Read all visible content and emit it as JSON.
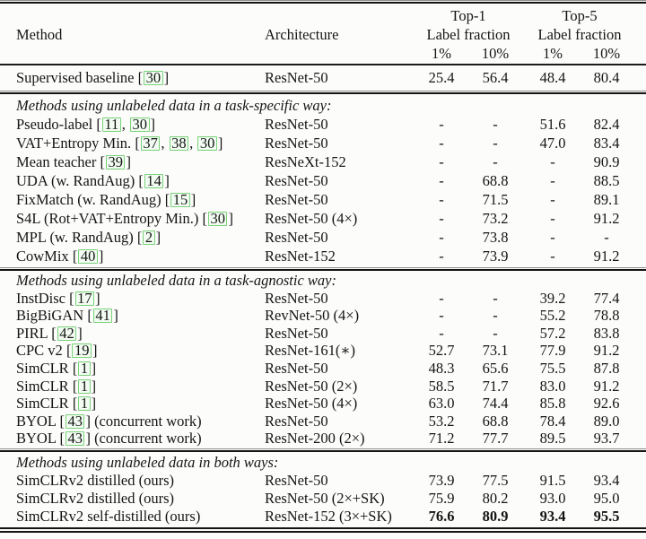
{
  "colors": {
    "citation_border": "#79d279",
    "citation_background": "#f2fcf2",
    "text": "#151515",
    "rule": "#141414"
  },
  "header": {
    "method": "Method",
    "architecture": "Architecture",
    "groups": [
      {
        "title": "Top-1",
        "subtitle": "Label fraction",
        "cols": [
          "1%",
          "10%"
        ]
      },
      {
        "title": "Top-5",
        "subtitle": "Label fraction",
        "cols": [
          "1%",
          "10%"
        ]
      }
    ]
  },
  "sections": [
    {
      "title": "",
      "rows": [
        {
          "method": {
            "name": "Supervised baseline",
            "citations": [
              "30"
            ],
            "suffix": ""
          },
          "architecture": "ResNet-50",
          "values": [
            "25.4",
            "56.4",
            "48.4",
            "80.4"
          ],
          "bold": false
        }
      ]
    },
    {
      "title": "Methods using unlabeled data in a task-specific way:",
      "rows": [
        {
          "method": {
            "name": "Pseudo-label",
            "citations": [
              "11",
              "30"
            ],
            "suffix": ""
          },
          "architecture": "ResNet-50",
          "values": [
            "-",
            "-",
            "51.6",
            "82.4"
          ],
          "bold": false
        },
        {
          "method": {
            "name": "VAT+Entropy Min.",
            "citations": [
              "37",
              "38",
              "30"
            ],
            "suffix": ""
          },
          "architecture": "ResNet-50",
          "values": [
            "-",
            "-",
            "47.0",
            "83.4"
          ],
          "bold": false
        },
        {
          "method": {
            "name": "Mean teacher",
            "citations": [
              "39"
            ],
            "suffix": ""
          },
          "architecture": "ResNeXt-152",
          "values": [
            "-",
            "-",
            "-",
            "90.9"
          ],
          "bold": false
        },
        {
          "method": {
            "name": "UDA (w. RandAug)",
            "citations": [
              "14"
            ],
            "suffix": ""
          },
          "architecture": "ResNet-50",
          "values": [
            "-",
            "68.8",
            "-",
            "88.5"
          ],
          "bold": false
        },
        {
          "method": {
            "name": "FixMatch (w. RandAug)",
            "citations": [
              "15"
            ],
            "suffix": ""
          },
          "architecture": "ResNet-50",
          "values": [
            "-",
            "71.5",
            "-",
            "89.1"
          ],
          "bold": false
        },
        {
          "method": {
            "name": "S4L (Rot+VAT+Entropy Min.)",
            "citations": [
              "30"
            ],
            "suffix": ""
          },
          "architecture": "ResNet-50 (4×)",
          "values": [
            "-",
            "73.2",
            "-",
            "91.2"
          ],
          "bold": false
        },
        {
          "method": {
            "name": "MPL (w. RandAug)",
            "citations": [
              "2"
            ],
            "suffix": ""
          },
          "architecture": "ResNet-50",
          "values": [
            "-",
            "73.8",
            "-",
            "-"
          ],
          "bold": false
        },
        {
          "method": {
            "name": "CowMix",
            "citations": [
              "40"
            ],
            "suffix": ""
          },
          "architecture": "ResNet-152",
          "values": [
            "-",
            "73.9",
            "-",
            "91.2"
          ],
          "bold": false
        }
      ]
    },
    {
      "title": "Methods using unlabeled data in a task-agnostic way:",
      "rows": [
        {
          "method": {
            "name": "InstDisc",
            "citations": [
              "17"
            ],
            "suffix": ""
          },
          "architecture": "ResNet-50",
          "values": [
            "-",
            "-",
            "39.2",
            "77.4"
          ],
          "bold": false
        },
        {
          "method": {
            "name": "BigBiGAN",
            "citations": [
              "41"
            ],
            "suffix": ""
          },
          "architecture": "RevNet-50 (4×)",
          "values": [
            "-",
            "-",
            "55.2",
            "78.8"
          ],
          "bold": false
        },
        {
          "method": {
            "name": "PIRL",
            "citations": [
              "42"
            ],
            "suffix": ""
          },
          "architecture": "ResNet-50",
          "values": [
            "-",
            "-",
            "57.2",
            "83.8"
          ],
          "bold": false
        },
        {
          "method": {
            "name": "CPC v2",
            "citations": [
              "19"
            ],
            "suffix": ""
          },
          "architecture": "ResNet-161(∗)",
          "values": [
            "52.7",
            "73.1",
            "77.9",
            "91.2"
          ],
          "bold": false
        },
        {
          "method": {
            "name": "SimCLR",
            "citations": [
              "1"
            ],
            "suffix": ""
          },
          "architecture": "ResNet-50",
          "values": [
            "48.3",
            "65.6",
            "75.5",
            "87.8"
          ],
          "bold": false
        },
        {
          "method": {
            "name": "SimCLR",
            "citations": [
              "1"
            ],
            "suffix": ""
          },
          "architecture": "ResNet-50 (2×)",
          "values": [
            "58.5",
            "71.7",
            "83.0",
            "91.2"
          ],
          "bold": false
        },
        {
          "method": {
            "name": "SimCLR",
            "citations": [
              "1"
            ],
            "suffix": ""
          },
          "architecture": "ResNet-50 (4×)",
          "values": [
            "63.0",
            "74.4",
            "85.8",
            "92.6"
          ],
          "bold": false
        },
        {
          "method": {
            "name": "BYOL",
            "citations": [
              "43"
            ],
            "suffix": " (concurrent work)"
          },
          "architecture": "ResNet-50",
          "values": [
            "53.2",
            "68.8",
            "78.4",
            "89.0"
          ],
          "bold": false
        },
        {
          "method": {
            "name": "BYOL",
            "citations": [
              "43"
            ],
            "suffix": " (concurrent work)"
          },
          "architecture": "ResNet-200 (2×)",
          "values": [
            "71.2",
            "77.7",
            "89.5",
            "93.7"
          ],
          "bold": false
        }
      ]
    },
    {
      "title": "Methods using unlabeled data in both ways:",
      "rows": [
        {
          "method": {
            "name": "SimCLRv2 distilled (ours)",
            "citations": [],
            "suffix": ""
          },
          "architecture": "ResNet-50",
          "values": [
            "73.9",
            "77.5",
            "91.5",
            "93.4"
          ],
          "bold": false
        },
        {
          "method": {
            "name": "SimCLRv2 distilled (ours)",
            "citations": [],
            "suffix": ""
          },
          "architecture": "ResNet-50 (2×+SK)",
          "values": [
            "75.9",
            "80.2",
            "93.0",
            "95.0"
          ],
          "bold": false
        },
        {
          "method": {
            "name": "SimCLRv2 self-distilled (ours)",
            "citations": [],
            "suffix": ""
          },
          "architecture": "ResNet-152 (3×+SK)",
          "values": [
            "76.6",
            "80.9",
            "93.4",
            "95.5"
          ],
          "bold": true
        }
      ]
    }
  ]
}
